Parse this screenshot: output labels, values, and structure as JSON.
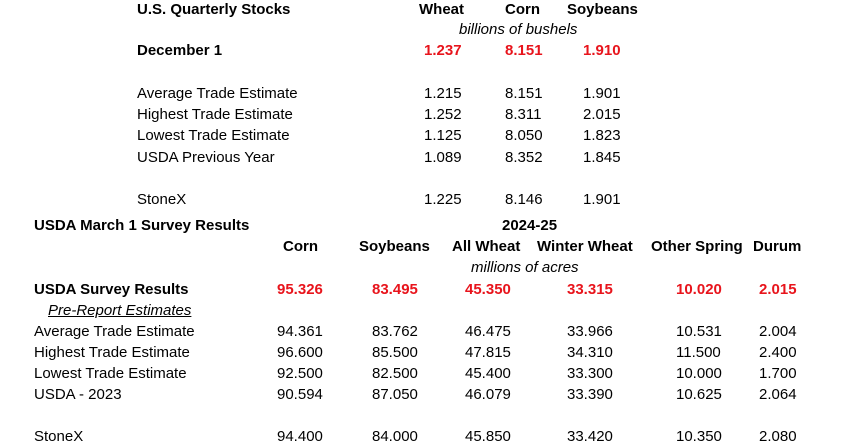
{
  "stocks": {
    "title": "U.S. Quarterly Stocks",
    "columns": [
      "Wheat",
      "Corn",
      "Soybeans"
    ],
    "unit": "billions of bushels",
    "highlight": {
      "label": "December 1",
      "values": [
        "1.237",
        "8.151",
        "1.910"
      ]
    },
    "rows": [
      {
        "label": "Average Trade Estimate",
        "values": [
          "1.215",
          "8.151",
          "1.901"
        ]
      },
      {
        "label": "Highest Trade Estimate",
        "values": [
          "1.252",
          "8.311",
          "2.015"
        ]
      },
      {
        "label": "Lowest Trade Estimate",
        "values": [
          "1.125",
          "8.050",
          "1.823"
        ]
      },
      {
        "label": "USDA Previous Year",
        "values": [
          "1.089",
          "8.352",
          "1.845"
        ]
      }
    ],
    "stonex": {
      "label": "StoneX",
      "values": [
        "1.225",
        "8.146",
        "1.901"
      ]
    }
  },
  "survey": {
    "title": "USDA March 1 Survey Results",
    "year": "2024-25",
    "columns": [
      "Corn",
      "Soybeans",
      "All Wheat",
      "Winter Wheat",
      "Other Spring",
      "Durum"
    ],
    "unit": "millions of acres",
    "highlight": {
      "label": "USDA Survey Results",
      "values": [
        "95.326",
        "83.495",
        "45.350",
        "33.315",
        "10.020",
        "2.015"
      ]
    },
    "pre_report_label": "Pre-Report Estimates",
    "rows": [
      {
        "label": "Average Trade Estimate",
        "values": [
          "94.361",
          "83.762",
          "46.475",
          "33.966",
          "10.531",
          "2.004"
        ]
      },
      {
        "label": "Highest Trade Estimate",
        "values": [
          "96.600",
          "85.500",
          "47.815",
          "34.310",
          "11.500",
          "2.400"
        ]
      },
      {
        "label": "Lowest Trade Estimate",
        "values": [
          "92.500",
          "82.500",
          "45.400",
          "33.300",
          "10.000",
          "1.700"
        ]
      },
      {
        "label": "USDA - 2023",
        "values": [
          "90.594",
          "87.050",
          "46.079",
          "33.390",
          "10.625",
          "2.064"
        ]
      }
    ],
    "stonex": {
      "label": "StoneX",
      "values": [
        "94.400",
        "84.000",
        "45.850",
        "33.420",
        "10.350",
        "2.080"
      ]
    }
  },
  "colors": {
    "highlight": "#e8141c",
    "text": "#000000",
    "background": "#ffffff"
  }
}
